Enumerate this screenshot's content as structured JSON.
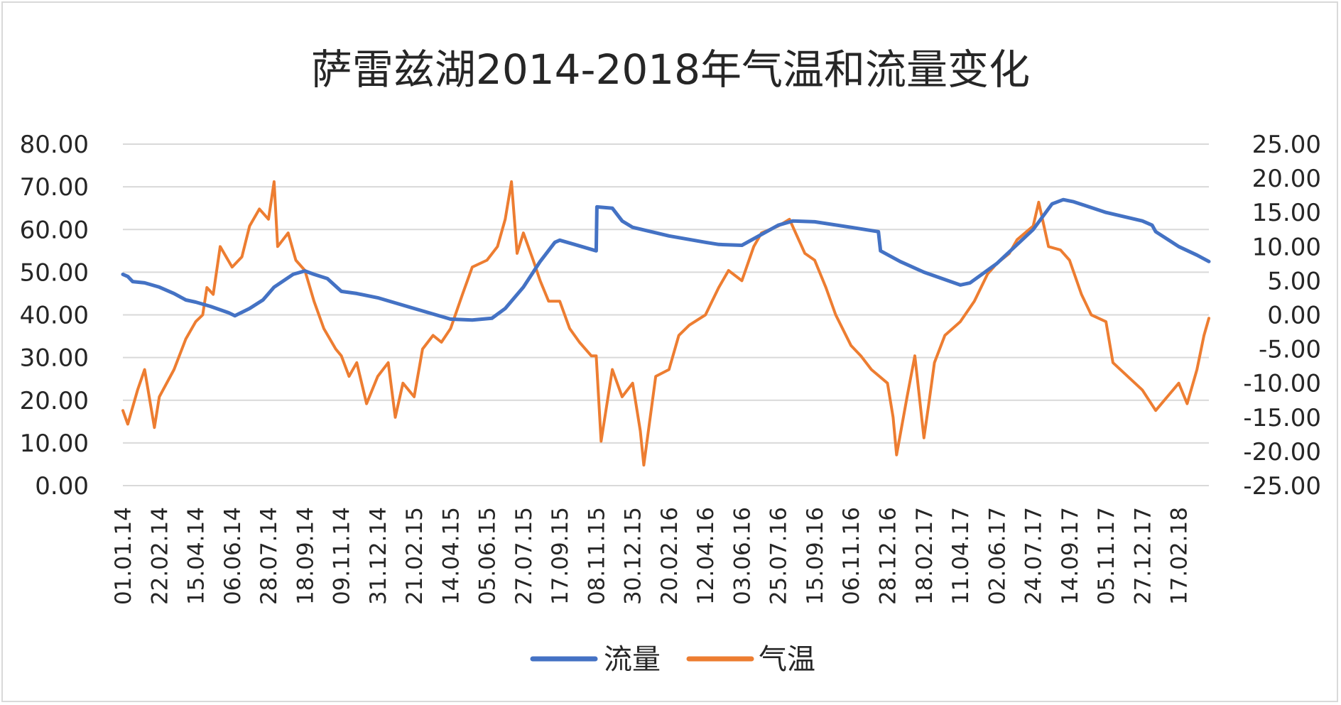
{
  "chart_data": {
    "type": "line",
    "title": "萨雷兹湖2014-2018年气温和流量变化",
    "x_tick_labels": [
      "01.01.14",
      "22.02.14",
      "15.04.14",
      "06.06.14",
      "28.07.14",
      "18.09.14",
      "09.11.14",
      "31.12.14",
      "21.02.15",
      "14.04.15",
      "05.06.15",
      "27.07.15",
      "17.09.15",
      "08.11.15",
      "30.12.15",
      "20.02.16",
      "12.04.16",
      "03.06.16",
      "25.07.16",
      "15.09.16",
      "06.11.16",
      "28.12.16",
      "18.02.17",
      "11.04.17",
      "02.06.17",
      "24.07.17",
      "14.09.17",
      "05.11.17",
      "27.12.17",
      "17.02.18"
    ],
    "y_left": {
      "min": 0,
      "max": 80,
      "step": 10,
      "tick_labels": [
        "0.00",
        "10.00",
        "20.00",
        "30.00",
        "40.00",
        "50.00",
        "60.00",
        "70.00",
        "80.00"
      ]
    },
    "y_right": {
      "min": -25,
      "max": 25,
      "step": 5,
      "tick_labels": [
        "-25.00",
        "-20.00",
        "-15.00",
        "-10.00",
        "-5.00",
        "0.00",
        "5.00",
        "10.00",
        "15.00",
        "20.00",
        "25.00"
      ]
    },
    "grid": true,
    "legend_position": "bottom",
    "series": [
      {
        "name": "流量",
        "axis": "left",
        "color": "#4472c4",
        "points": [
          [
            "01.01.14",
            49.5
          ],
          [
            "08.01.14",
            49.0
          ],
          [
            "15.01.14",
            47.8
          ],
          [
            "01.02.14",
            47.5
          ],
          [
            "22.02.14",
            46.5
          ],
          [
            "15.03.14",
            45.0
          ],
          [
            "01.04.14",
            43.5
          ],
          [
            "15.04.14",
            43.0
          ],
          [
            "06.05.14",
            42.0
          ],
          [
            "01.06.14",
            40.5
          ],
          [
            "10.06.14",
            39.8
          ],
          [
            "01.07.14",
            41.5
          ],
          [
            "20.07.14",
            43.5
          ],
          [
            "05.08.14",
            46.5
          ],
          [
            "01.09.14",
            49.5
          ],
          [
            "18.09.14",
            50.3
          ],
          [
            "01.10.14",
            49.5
          ],
          [
            "20.10.14",
            48.5
          ],
          [
            "09.11.14",
            45.5
          ],
          [
            "01.12.14",
            45.0
          ],
          [
            "31.12.14",
            44.0
          ],
          [
            "21.02.15",
            41.5
          ],
          [
            "14.04.15",
            39.0
          ],
          [
            "15.05.15",
            38.8
          ],
          [
            "12.06.15",
            39.2
          ],
          [
            "01.07.15",
            41.5
          ],
          [
            "27.07.15",
            46.5
          ],
          [
            "20.08.15",
            52.5
          ],
          [
            "10.09.15",
            57.0
          ],
          [
            "17.09.15",
            57.5
          ],
          [
            "08.10.15",
            56.5
          ],
          [
            "08.11.15",
            55.0
          ],
          [
            "09.11.15",
            65.3
          ],
          [
            "01.12.15",
            65.0
          ],
          [
            "15.12.15",
            62.0
          ],
          [
            "30.12.15",
            60.5
          ],
          [
            "20.02.16",
            58.5
          ],
          [
            "12.04.16",
            57.0
          ],
          [
            "01.05.16",
            56.5
          ],
          [
            "03.06.16",
            56.3
          ],
          [
            "25.07.16",
            61.0
          ],
          [
            "15.08.16",
            62.0
          ],
          [
            "15.09.16",
            61.8
          ],
          [
            "06.11.16",
            60.5
          ],
          [
            "15.12.16",
            59.5
          ],
          [
            "18.12.16",
            55.0
          ],
          [
            "15.01.17",
            52.5
          ],
          [
            "18.02.17",
            50.0
          ],
          [
            "11.04.17",
            47.0
          ],
          [
            "25.04.17",
            47.5
          ],
          [
            "02.06.17",
            52.0
          ],
          [
            "24.07.17",
            60.0
          ],
          [
            "20.08.17",
            66.0
          ],
          [
            "05.09.17",
            67.0
          ],
          [
            "20.09.17",
            66.5
          ],
          [
            "05.11.17",
            64.0
          ],
          [
            "27.12.17",
            62.0
          ],
          [
            "10.01.18",
            61.0
          ],
          [
            "15.01.18",
            59.5
          ],
          [
            "17.02.18",
            56.0
          ],
          [
            "15.03.18",
            54.0
          ],
          [
            "01.04.18",
            52.5
          ]
        ]
      },
      {
        "name": "气温",
        "axis": "right",
        "color": "#ed7d31",
        "points": [
          [
            "01.01.14",
            -14.0
          ],
          [
            "08.01.14",
            -16.0
          ],
          [
            "22.01.14",
            -11.0
          ],
          [
            "01.02.14",
            -8.0
          ],
          [
            "15.02.14",
            -16.5
          ],
          [
            "22.02.14",
            -12.0
          ],
          [
            "15.03.14",
            -8.0
          ],
          [
            "01.04.14",
            -3.5
          ],
          [
            "15.04.14",
            -1.0
          ],
          [
            "25.04.14",
            0.0
          ],
          [
            "01.05.14",
            4.0
          ],
          [
            "10.05.14",
            3.0
          ],
          [
            "20.05.14",
            10.0
          ],
          [
            "06.06.14",
            7.0
          ],
          [
            "20.06.14",
            8.5
          ],
          [
            "01.07.14",
            13.0
          ],
          [
            "15.07.14",
            15.5
          ],
          [
            "28.07.14",
            14.0
          ],
          [
            "05.08.14",
            19.5
          ],
          [
            "10.08.14",
            10.0
          ],
          [
            "25.08.14",
            12.0
          ],
          [
            "05.09.14",
            8.0
          ],
          [
            "18.09.14",
            6.5
          ],
          [
            "01.10.14",
            2.0
          ],
          [
            "15.10.14",
            -2.0
          ],
          [
            "01.11.14",
            -5.0
          ],
          [
            "09.11.14",
            -6.0
          ],
          [
            "20.11.14",
            -9.0
          ],
          [
            "01.12.14",
            -7.0
          ],
          [
            "15.12.14",
            -13.0
          ],
          [
            "31.12.14",
            -9.0
          ],
          [
            "15.01.15",
            -7.0
          ],
          [
            "25.01.15",
            -15.0
          ],
          [
            "05.02.15",
            -10.0
          ],
          [
            "21.02.15",
            -12.0
          ],
          [
            "05.03.15",
            -5.0
          ],
          [
            "20.03.15",
            -3.0
          ],
          [
            "01.04.15",
            -4.0
          ],
          [
            "14.04.15",
            -2.0
          ],
          [
            "01.05.15",
            3.0
          ],
          [
            "15.05.15",
            7.0
          ],
          [
            "05.06.15",
            8.0
          ],
          [
            "20.06.15",
            10.0
          ],
          [
            "01.07.15",
            14.0
          ],
          [
            "10.07.15",
            19.5
          ],
          [
            "18.07.15",
            9.0
          ],
          [
            "27.07.15",
            12.0
          ],
          [
            "10.08.15",
            8.0
          ],
          [
            "20.08.15",
            5.0
          ],
          [
            "01.09.15",
            2.0
          ],
          [
            "17.09.15",
            2.0
          ],
          [
            "01.10.15",
            -2.0
          ],
          [
            "15.10.15",
            -4.0
          ],
          [
            "01.11.15",
            -6.0
          ],
          [
            "08.11.15",
            -6.0
          ],
          [
            "15.11.15",
            -18.5
          ],
          [
            "01.12.15",
            -8.0
          ],
          [
            "15.12.15",
            -12.0
          ],
          [
            "30.12.15",
            -10.0
          ],
          [
            "10.01.16",
            -17.0
          ],
          [
            "15.01.16",
            -22.0
          ],
          [
            "01.02.16",
            -9.0
          ],
          [
            "20.02.16",
            -8.0
          ],
          [
            "05.03.16",
            -3.0
          ],
          [
            "20.03.16",
            -1.5
          ],
          [
            "12.04.16",
            0.0
          ],
          [
            "01.05.16",
            4.0
          ],
          [
            "15.05.16",
            6.5
          ],
          [
            "03.06.16",
            5.0
          ],
          [
            "20.06.16",
            10.0
          ],
          [
            "01.07.16",
            12.0
          ],
          [
            "25.07.16",
            13.0
          ],
          [
            "10.08.16",
            14.0
          ],
          [
            "01.09.16",
            9.0
          ],
          [
            "15.09.16",
            8.0
          ],
          [
            "01.10.16",
            4.0
          ],
          [
            "15.10.16",
            0.0
          ],
          [
            "06.11.16",
            -4.5
          ],
          [
            "20.11.16",
            -6.0
          ],
          [
            "05.12.16",
            -8.0
          ],
          [
            "28.12.16",
            -10.0
          ],
          [
            "05.01.17",
            -15.0
          ],
          [
            "10.01.17",
            -20.5
          ],
          [
            "25.01.17",
            -12.0
          ],
          [
            "05.02.17",
            -6.0
          ],
          [
            "18.02.17",
            -18.0
          ],
          [
            "25.02.17",
            -13.0
          ],
          [
            "05.03.17",
            -7.0
          ],
          [
            "20.03.17",
            -3.0
          ],
          [
            "11.04.17",
            -1.0
          ],
          [
            "01.05.17",
            2.0
          ],
          [
            "20.05.17",
            6.0
          ],
          [
            "02.06.17",
            7.5
          ],
          [
            "20.06.17",
            9.0
          ],
          [
            "01.07.17",
            11.0
          ],
          [
            "24.07.17",
            13.0
          ],
          [
            "01.08.17",
            16.5
          ],
          [
            "15.08.17",
            10.0
          ],
          [
            "01.09.17",
            9.5
          ],
          [
            "14.09.17",
            8.0
          ],
          [
            "01.10.17",
            3.0
          ],
          [
            "15.10.17",
            0.0
          ],
          [
            "05.11.17",
            -1.0
          ],
          [
            "15.11.17",
            -7.0
          ],
          [
            "27.12.17",
            -11.0
          ],
          [
            "15.01.18",
            -14.0
          ],
          [
            "17.02.18",
            -10.0
          ],
          [
            "01.03.18",
            -13.0
          ],
          [
            "15.03.18",
            -8.0
          ],
          [
            "25.03.18",
            -3.0
          ],
          [
            "01.04.18",
            -0.5
          ]
        ]
      }
    ]
  }
}
